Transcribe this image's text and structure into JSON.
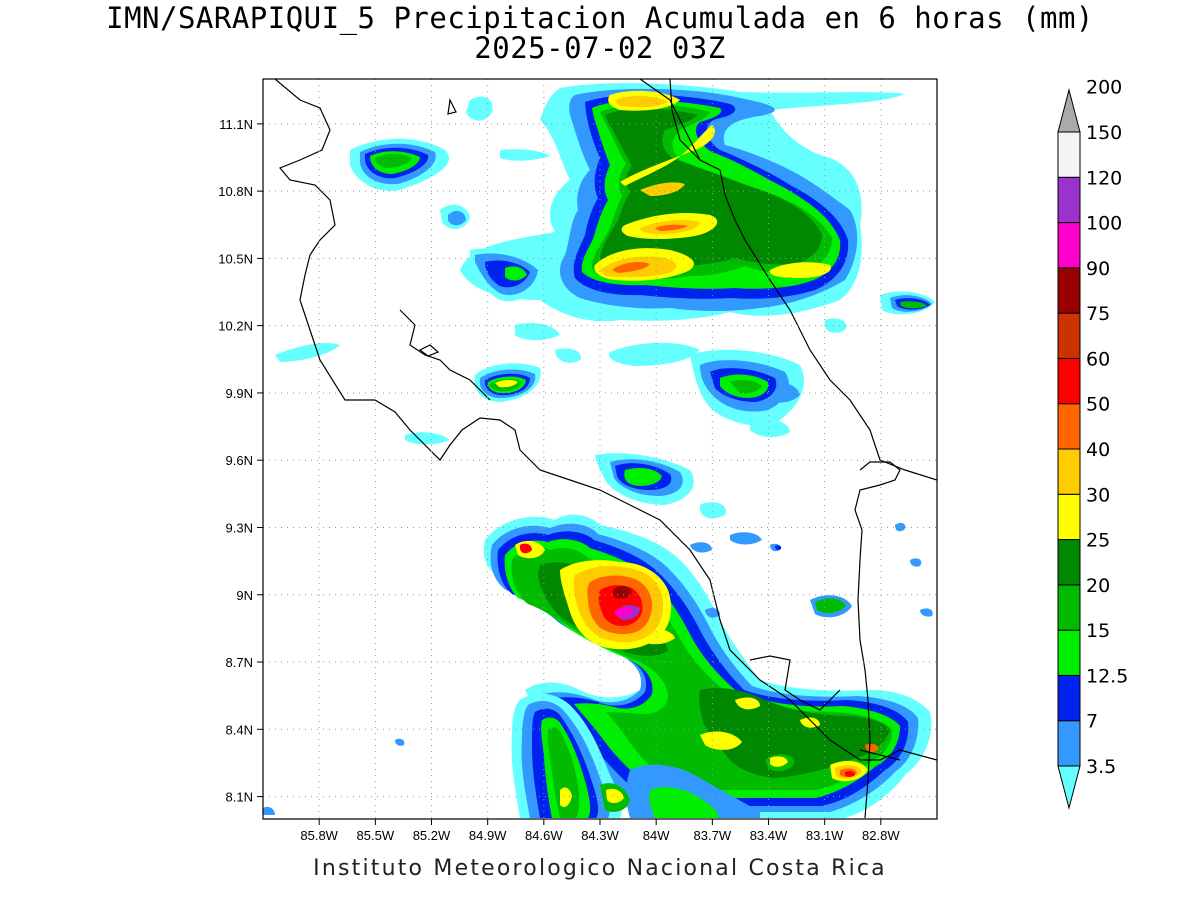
{
  "title": {
    "line1": "IMN/SARAPIQUI_5 Precipitacion Acumulada en 6 horas (mm)",
    "line2": "2025-07-02 03Z"
  },
  "footer": "Instituto Meteorologico Nacional Costa Rica",
  "map": {
    "lon_range": [
      -86.1,
      -82.5
    ],
    "lat_range": [
      8.0,
      11.3
    ],
    "lat_ticks": [
      "11.1N",
      "10.8N",
      "10.5N",
      "10.2N",
      "9.9N",
      "9.6N",
      "9.3N",
      "9N",
      "8.7N",
      "8.4N",
      "8.1N"
    ],
    "lat_values": [
      11.1,
      10.8,
      10.5,
      10.2,
      9.9,
      9.6,
      9.3,
      9.0,
      8.7,
      8.4,
      8.1
    ],
    "lon_ticks": [
      "85.8W",
      "85.5W",
      "85.2W",
      "84.9W",
      "84.6W",
      "84.3W",
      "84W",
      "83.7W",
      "83.4W",
      "83.1W",
      "82.8W"
    ],
    "lon_values": [
      -85.8,
      -85.5,
      -85.2,
      -84.9,
      -84.6,
      -84.3,
      -84.0,
      -83.7,
      -83.4,
      -83.1,
      -82.8
    ],
    "grid": "dotted"
  },
  "colorbar": {
    "labels": [
      "3.5",
      "7",
      "12.5",
      "15",
      "20",
      "25",
      "30",
      "40",
      "50",
      "60",
      "75",
      "90",
      "100",
      "120",
      "150",
      "200"
    ],
    "colors": [
      "#66ffff",
      "#3399ff",
      "#0022ee",
      "#00ee00",
      "#00bb00",
      "#008800",
      "#ffff00",
      "#ffcc00",
      "#ff6600",
      "#ff0000",
      "#cc3300",
      "#990000",
      "#ff00cc",
      "#9933cc",
      "#f4f4f4",
      "#aaaaaa"
    ]
  }
}
